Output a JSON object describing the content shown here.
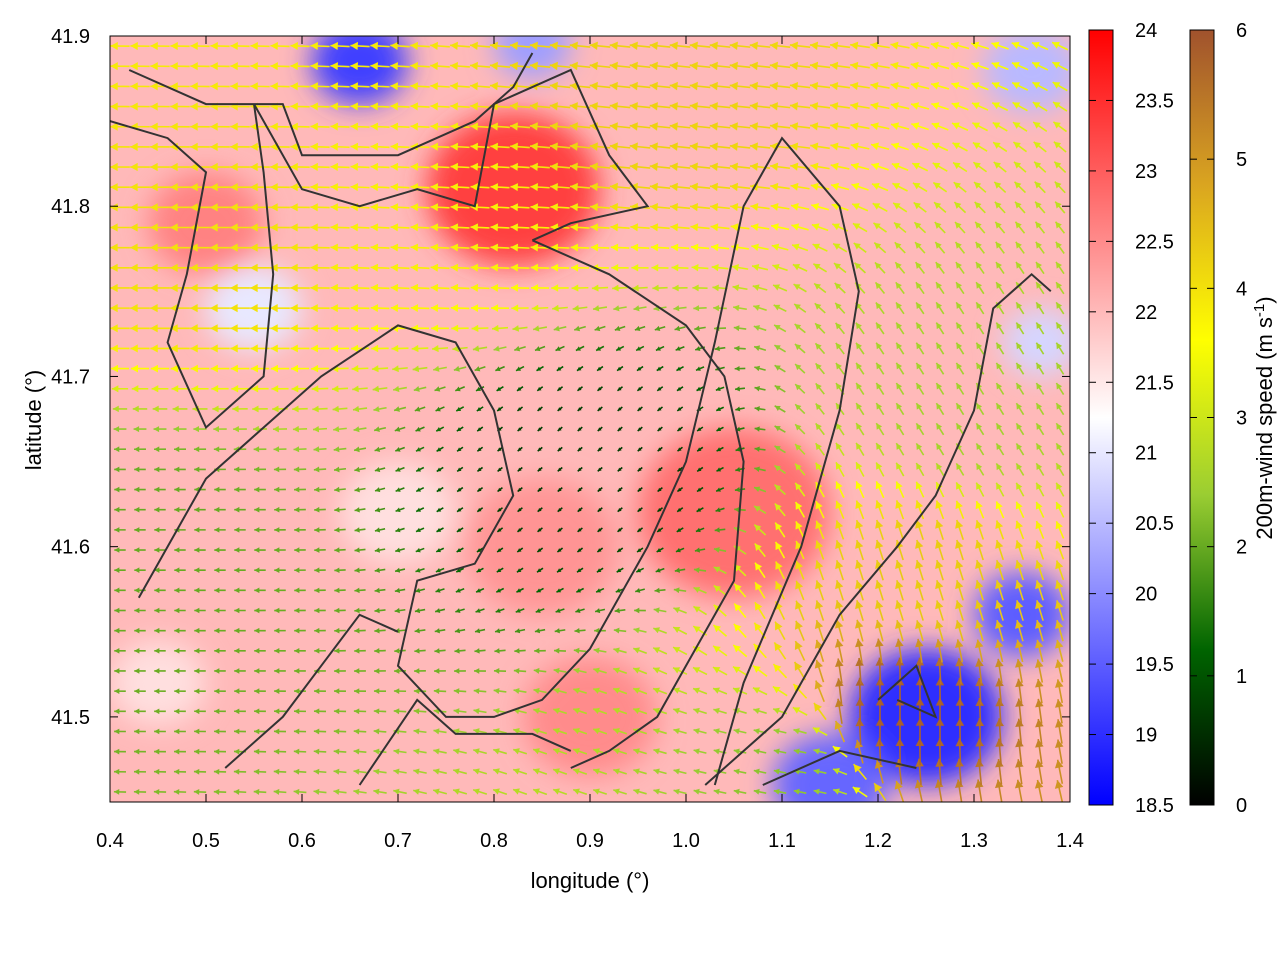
{
  "chart_data": {
    "type": "heatmap",
    "title": "",
    "xlabel": "longitude (°)",
    "ylabel": "latitude (°)",
    "xlim": [
      0.4,
      1.4
    ],
    "ylim": [
      41.45,
      41.9
    ],
    "xticks": [
      "0.4",
      "0.5",
      "0.6",
      "0.7",
      "0.8",
      "0.9",
      "1.0",
      "1.1",
      "1.2",
      "1.3",
      "1.4"
    ],
    "yticks": [
      "41.5",
      "41.6",
      "41.7",
      "41.8",
      "41.9"
    ],
    "temperature_colorbar": {
      "range": [
        18.5,
        24
      ],
      "ticks": [
        "18.5",
        "19",
        "19.5",
        "20",
        "20.5",
        "21",
        "21.5",
        "22",
        "22.5",
        "23",
        "23.5",
        "24"
      ],
      "colors": [
        "#0000ff",
        "#ffffff",
        "#ff0000"
      ]
    },
    "wind_colorbar": {
      "label": "200m-wind speed (m s",
      "label_sup": "-1",
      "label_end": ")",
      "range": [
        0,
        6
      ],
      "ticks": [
        "0",
        "1",
        "2",
        "3",
        "4",
        "5",
        "6"
      ],
      "colors": [
        "#000000",
        "#006400",
        "#9acd32",
        "#ffff00",
        "#daa520",
        "#a0522d"
      ]
    },
    "temperature_field_anomalies": [
      {
        "lon": 0.66,
        "lat": 41.885,
        "value": 19.2,
        "radius": 0.05
      },
      {
        "lon": 0.84,
        "lat": 41.895,
        "value": 20.2,
        "radius": 0.04
      },
      {
        "lon": 0.55,
        "lat": 41.74,
        "value": 21.0,
        "radius": 0.05
      },
      {
        "lon": 0.82,
        "lat": 41.81,
        "value": 23.3,
        "radius": 0.09
      },
      {
        "lon": 0.5,
        "lat": 41.79,
        "value": 22.6,
        "radius": 0.06
      },
      {
        "lon": 1.05,
        "lat": 41.62,
        "value": 22.8,
        "radius": 0.1
      },
      {
        "lon": 0.85,
        "lat": 41.6,
        "value": 22.4,
        "radius": 0.08
      },
      {
        "lon": 0.9,
        "lat": 41.5,
        "value": 22.5,
        "radius": 0.07
      },
      {
        "lon": 1.25,
        "lat": 41.5,
        "value": 19.0,
        "radius": 0.08
      },
      {
        "lon": 1.15,
        "lat": 41.46,
        "value": 19.6,
        "radius": 0.06
      },
      {
        "lon": 1.35,
        "lat": 41.56,
        "value": 19.5,
        "radius": 0.05
      },
      {
        "lon": 1.36,
        "lat": 41.88,
        "value": 20.5,
        "radius": 0.05
      },
      {
        "lon": 1.37,
        "lat": 41.72,
        "value": 20.8,
        "radius": 0.04
      },
      {
        "lon": 0.7,
        "lat": 41.62,
        "value": 21.6,
        "radius": 0.06
      },
      {
        "lon": 0.45,
        "lat": 41.52,
        "value": 21.6,
        "radius": 0.05
      }
    ],
    "temperature_background": 22.0,
    "wind_vectors_sample": [
      {
        "lon": 0.5,
        "lat": 41.77,
        "speed": 4.0,
        "u": -1.0,
        "v": 0.0
      },
      {
        "lon": 0.75,
        "lat": 41.79,
        "speed": 3.8,
        "u": -1.0,
        "v": 0.05
      },
      {
        "lon": 0.95,
        "lat": 41.86,
        "speed": 4.2,
        "u": -1.0,
        "v": 0.1
      },
      {
        "lon": 0.9,
        "lat": 41.65,
        "speed": 0.7,
        "u": -0.6,
        "v": -0.5
      },
      {
        "lon": 1.22,
        "lat": 41.5,
        "speed": 5.8,
        "u": 0.0,
        "v": 1.0
      },
      {
        "lon": 1.25,
        "lat": 41.58,
        "speed": 4.3,
        "u": -0.3,
        "v": 0.95
      },
      {
        "lon": 1.3,
        "lat": 41.68,
        "speed": 2.5,
        "u": -0.5,
        "v": 0.8
      },
      {
        "lon": 1.1,
        "lat": 41.47,
        "speed": 2.3,
        "u": -1.0,
        "v": 0.2
      },
      {
        "lon": 0.45,
        "lat": 41.6,
        "speed": 2.0,
        "u": -1.0,
        "v": 0.0
      }
    ],
    "contour_lines": [
      [
        [
          0.42,
          41.88
        ],
        [
          0.5,
          41.86
        ],
        [
          0.58,
          41.86
        ],
        [
          0.6,
          41.83
        ],
        [
          0.7,
          41.83
        ],
        [
          0.78,
          41.85
        ],
        [
          0.82,
          41.87
        ],
        [
          0.84,
          41.89
        ]
      ],
      [
        [
          0.4,
          41.85
        ],
        [
          0.46,
          41.84
        ],
        [
          0.5,
          41.82
        ],
        [
          0.48,
          41.76
        ],
        [
          0.46,
          41.72
        ],
        [
          0.5,
          41.67
        ],
        [
          0.56,
          41.7
        ],
        [
          0.57,
          41.76
        ],
        [
          0.56,
          41.82
        ],
        [
          0.55,
          41.86
        ]
      ],
      [
        [
          0.55,
          41.86
        ],
        [
          0.6,
          41.81
        ],
        [
          0.66,
          41.8
        ],
        [
          0.72,
          41.81
        ],
        [
          0.78,
          41.8
        ],
        [
          0.8,
          41.86
        ],
        [
          0.88,
          41.88
        ],
        [
          0.92,
          41.83
        ],
        [
          0.96,
          41.8
        ],
        [
          0.88,
          41.79
        ],
        [
          0.84,
          41.78
        ]
      ],
      [
        [
          0.84,
          41.78
        ],
        [
          0.92,
          41.76
        ],
        [
          1.0,
          41.73
        ],
        [
          1.04,
          41.7
        ],
        [
          1.06,
          41.65
        ],
        [
          1.05,
          41.58
        ],
        [
          1.0,
          41.53
        ],
        [
          0.97,
          41.5
        ],
        [
          0.92,
          41.48
        ],
        [
          0.88,
          41.47
        ]
      ],
      [
        [
          0.43,
          41.57
        ],
        [
          0.5,
          41.64
        ],
        [
          0.56,
          41.67
        ],
        [
          0.62,
          41.7
        ],
        [
          0.7,
          41.73
        ],
        [
          0.76,
          41.72
        ],
        [
          0.8,
          41.68
        ],
        [
          0.82,
          41.63
        ],
        [
          0.78,
          41.59
        ],
        [
          0.72,
          41.58
        ],
        [
          0.7,
          41.53
        ],
        [
          0.75,
          41.5
        ],
        [
          0.8,
          41.5
        ],
        [
          0.85,
          41.51
        ],
        [
          0.9,
          41.54
        ],
        [
          0.96,
          41.6
        ],
        [
          1.0,
          41.65
        ],
        [
          1.03,
          41.72
        ],
        [
          1.06,
          41.8
        ],
        [
          1.1,
          41.84
        ],
        [
          1.16,
          41.8
        ],
        [
          1.18,
          41.75
        ],
        [
          1.16,
          41.68
        ],
        [
          1.12,
          41.6
        ],
        [
          1.06,
          41.52
        ],
        [
          1.03,
          41.46
        ]
      ],
      [
        [
          0.52,
          41.47
        ],
        [
          0.58,
          41.5
        ],
        [
          0.62,
          41.53
        ],
        [
          0.66,
          41.56
        ],
        [
          0.7,
          41.55
        ]
      ],
      [
        [
          0.66,
          41.46
        ],
        [
          0.72,
          41.51
        ],
        [
          0.76,
          41.49
        ],
        [
          0.84,
          41.49
        ],
        [
          0.88,
          41.48
        ]
      ],
      [
        [
          1.02,
          41.46
        ],
        [
          1.1,
          41.5
        ],
        [
          1.16,
          41.56
        ],
        [
          1.22,
          41.6
        ],
        [
          1.26,
          41.63
        ],
        [
          1.3,
          41.68
        ],
        [
          1.32,
          41.74
        ],
        [
          1.36,
          41.76
        ],
        [
          1.38,
          41.75
        ]
      ],
      [
        [
          1.2,
          41.51
        ],
        [
          1.24,
          41.53
        ],
        [
          1.26,
          41.5
        ],
        [
          1.22,
          41.51
        ]
      ],
      [
        [
          1.08,
          41.46
        ],
        [
          1.16,
          41.48
        ],
        [
          1.24,
          41.47
        ]
      ]
    ]
  }
}
